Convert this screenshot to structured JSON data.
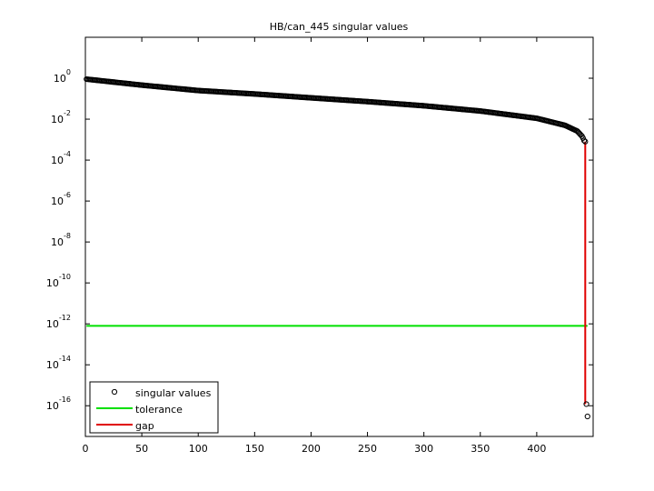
{
  "chart_data": {
    "type": "scatter",
    "title": "HB/can_445 singular values",
    "xlabel": "",
    "ylabel": "",
    "xlim": [
      0,
      450
    ],
    "ylim_log10": [
      -17.5,
      2
    ],
    "y_scale": "log",
    "grid": false,
    "legend_placement": "bottom-left",
    "x_ticks": [
      "0",
      "50",
      "100",
      "150",
      "200",
      "250",
      "300",
      "350",
      "400"
    ],
    "x_tick_values": [
      0,
      50,
      100,
      150,
      200,
      250,
      300,
      350,
      400
    ],
    "y_ticks": [
      {
        "base": "10",
        "exp": "0"
      },
      {
        "base": "10",
        "exp": "-2"
      },
      {
        "base": "10",
        "exp": "-4"
      },
      {
        "base": "10",
        "exp": "-6"
      },
      {
        "base": "10",
        "exp": "-8"
      },
      {
        "base": "10",
        "exp": "-10"
      },
      {
        "base": "10",
        "exp": "-12"
      },
      {
        "base": "10",
        "exp": "-14"
      },
      {
        "base": "10",
        "exp": "-16"
      }
    ],
    "y_tick_log10": [
      0,
      -2,
      -4,
      -6,
      -8,
      -10,
      -12,
      -14,
      -16
    ],
    "series": [
      {
        "name": "singular values",
        "marker": "circle",
        "color": "#000000",
        "curve_points": [
          {
            "x": 1,
            "y": 0.9
          },
          {
            "x": 50,
            "y": 0.46
          },
          {
            "x": 100,
            "y": 0.25
          },
          {
            "x": 150,
            "y": 0.17
          },
          {
            "x": 200,
            "y": 0.11
          },
          {
            "x": 250,
            "y": 0.072
          },
          {
            "x": 300,
            "y": 0.045
          },
          {
            "x": 350,
            "y": 0.025
          },
          {
            "x": 400,
            "y": 0.011
          },
          {
            "x": 425,
            "y": 0.005
          },
          {
            "x": 436,
            "y": 0.0026
          },
          {
            "x": 440,
            "y": 0.0015
          },
          {
            "x": 441,
            "y": 0.0012
          },
          {
            "x": 442,
            "y": 0.0009
          }
        ],
        "tail_points": [
          {
            "x": 443,
            "y": 0.0008
          },
          {
            "x": 444,
            "y": 1.2e-16
          },
          {
            "x": 445,
            "y": 3e-17
          }
        ]
      },
      {
        "name": "tolerance",
        "color": "#00e000",
        "x": [
          1,
          445
        ],
        "y": [
          8e-13,
          8e-13
        ]
      },
      {
        "name": "gap",
        "color": "#e00000",
        "x": [
          443,
          443
        ],
        "y": [
          0.0008,
          1.2e-16
        ]
      }
    ]
  }
}
